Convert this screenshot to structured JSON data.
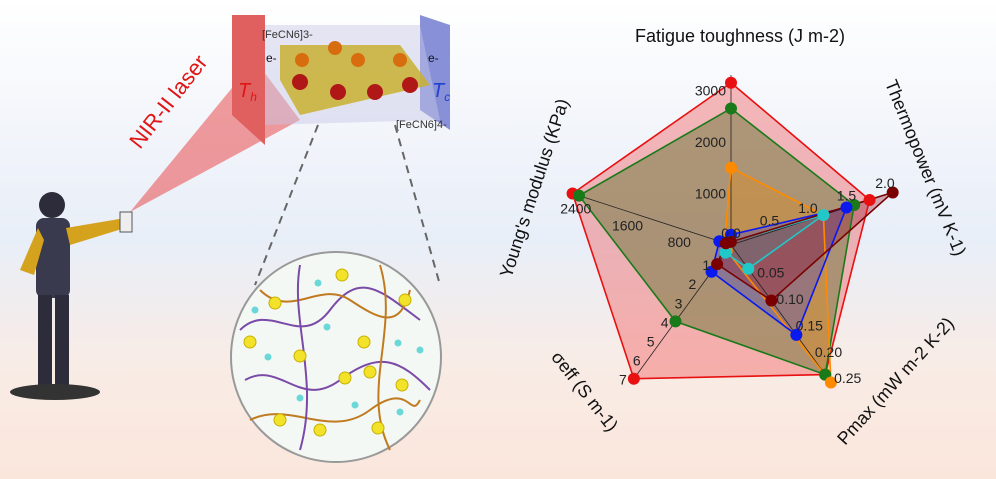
{
  "illustration": {
    "laser_label": "NIR-II laser",
    "hot_label": "T",
    "hot_sub": "h",
    "cold_label": "T",
    "cold_sub": "c",
    "ion_ox": "[FeCN6]3-",
    "ion_red": "[FeCN6]4-",
    "electron": "e-"
  },
  "chart_data": {
    "type": "radar",
    "axes": [
      {
        "label": "Fatigue toughness (J m-2)",
        "max": 3300,
        "ticks": [
          "1000",
          "2000",
          "3000"
        ],
        "tick_values": [
          1000,
          2000,
          3000
        ]
      },
      {
        "label": "Thermopower (mV K-1)",
        "max": 2.1,
        "ticks": [
          "0.0",
          "0.5",
          "1.0",
          "1.5",
          "2.0"
        ],
        "tick_values": [
          0,
          0.5,
          1.0,
          1.5,
          2.0
        ]
      },
      {
        "label": "Pmax (mW m-2 K-2)",
        "max": 0.26,
        "ticks": [
          "0.05",
          "0.10",
          "0.15",
          "0.20",
          "0.25"
        ],
        "tick_values": [
          0.05,
          0.1,
          0.15,
          0.2,
          0.25
        ]
      },
      {
        "label": "σeff (S m-1)",
        "max": 7.2,
        "ticks": [
          "1",
          "2",
          "3",
          "4",
          "5",
          "6",
          "7"
        ],
        "tick_values": [
          1,
          2,
          3,
          4,
          5,
          6,
          7
        ]
      },
      {
        "label": "Young's modulus (KPa)",
        "max": 2500,
        "ticks": [
          "800",
          "1600",
          "2400"
        ],
        "tick_values": [
          800,
          1600,
          2400
        ]
      }
    ],
    "series": [
      {
        "color": "#e81010",
        "fill": "rgba(240,60,60,0.35)",
        "values": [
          3150,
          1.8,
          0.245,
          7.0,
          2450
        ]
      },
      {
        "color": "#1a7a1a",
        "fill": "rgba(90,110,40,0.45)",
        "values": [
          2650,
          1.6,
          0.245,
          4.0,
          2350
        ]
      },
      {
        "color": "#ff8a00",
        "fill": "rgba(230,140,20,0.35)",
        "values": [
          1500,
          1.2,
          0.26,
          0.3,
          100
        ]
      },
      {
        "color": "#0a1aee",
        "fill": "rgba(60,60,220,0.3)",
        "values": [
          200,
          1.5,
          0.17,
          1.4,
          180
        ]
      },
      {
        "color": "#20c8c8",
        "fill": "rgba(40,200,200,0.3)",
        "values": [
          60,
          1.2,
          0.045,
          0.4,
          60
        ]
      },
      {
        "color": "#7a0000",
        "fill": "rgba(150,20,40,0.35)",
        "values": [
          60,
          2.1,
          0.105,
          1.0,
          80
        ]
      }
    ]
  }
}
